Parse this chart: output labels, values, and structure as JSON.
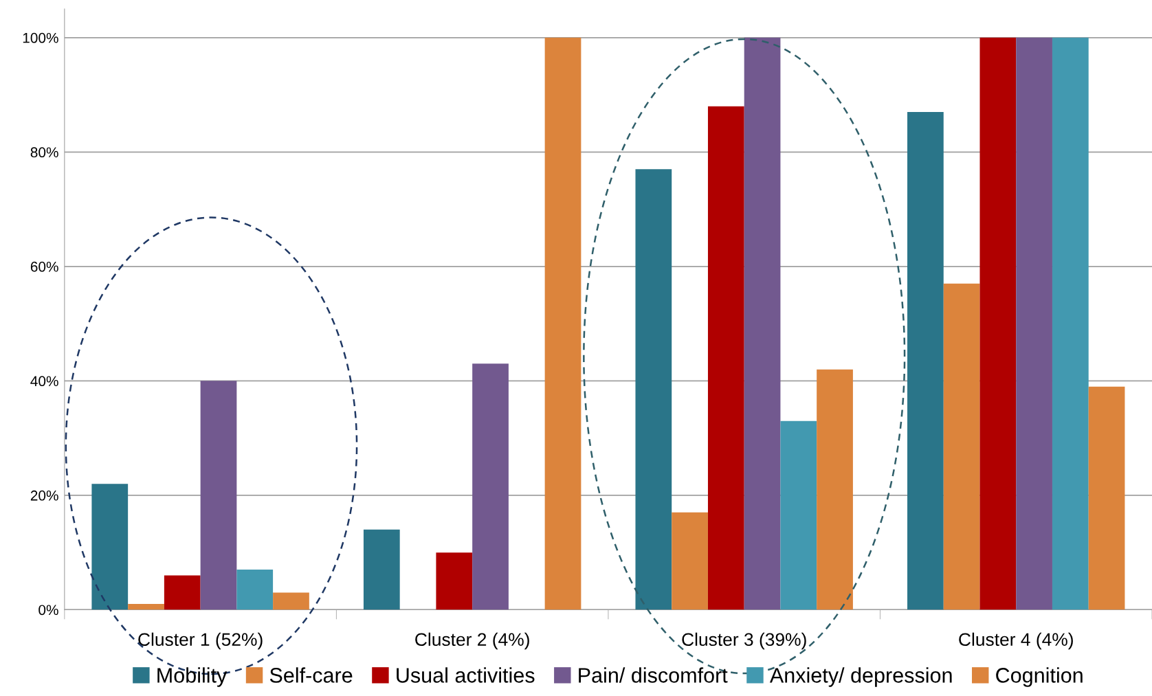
{
  "chart_data": {
    "type": "bar",
    "categories": [
      "Cluster 1 (52%)",
      "Cluster 2 (4%)",
      "Cluster 3 (39%)",
      "Cluster 4 (4%)"
    ],
    "series": [
      {
        "name": "Mobility",
        "color": "#2a7589",
        "values": [
          22,
          14,
          77,
          87
        ]
      },
      {
        "name": "Self-care",
        "color": "#dc843c",
        "values": [
          1,
          0,
          17,
          57
        ]
      },
      {
        "name": "Usual activities",
        "color": "#b00000",
        "values": [
          6,
          10,
          88,
          100
        ]
      },
      {
        "name": "Pain/ discomfort",
        "color": "#72598f",
        "values": [
          40,
          43,
          100,
          100
        ]
      },
      {
        "name": "Anxiety/ depression",
        "color": "#4299b0",
        "values": [
          7,
          0,
          33,
          100
        ]
      },
      {
        "name": "Cognition",
        "color": "#dc843c",
        "values": [
          3,
          100,
          42,
          39
        ]
      }
    ],
    "ylim": [
      0,
      105
    ],
    "yticks": [
      {
        "value": 0,
        "label": "0%"
      },
      {
        "value": 20,
        "label": "20%"
      },
      {
        "value": 40,
        "label": "40%"
      },
      {
        "value": 60,
        "label": "60%"
      },
      {
        "value": 80,
        "label": "80%"
      },
      {
        "value": 100,
        "label": "100%"
      }
    ],
    "grid": "y",
    "legend": "bottom"
  }
}
